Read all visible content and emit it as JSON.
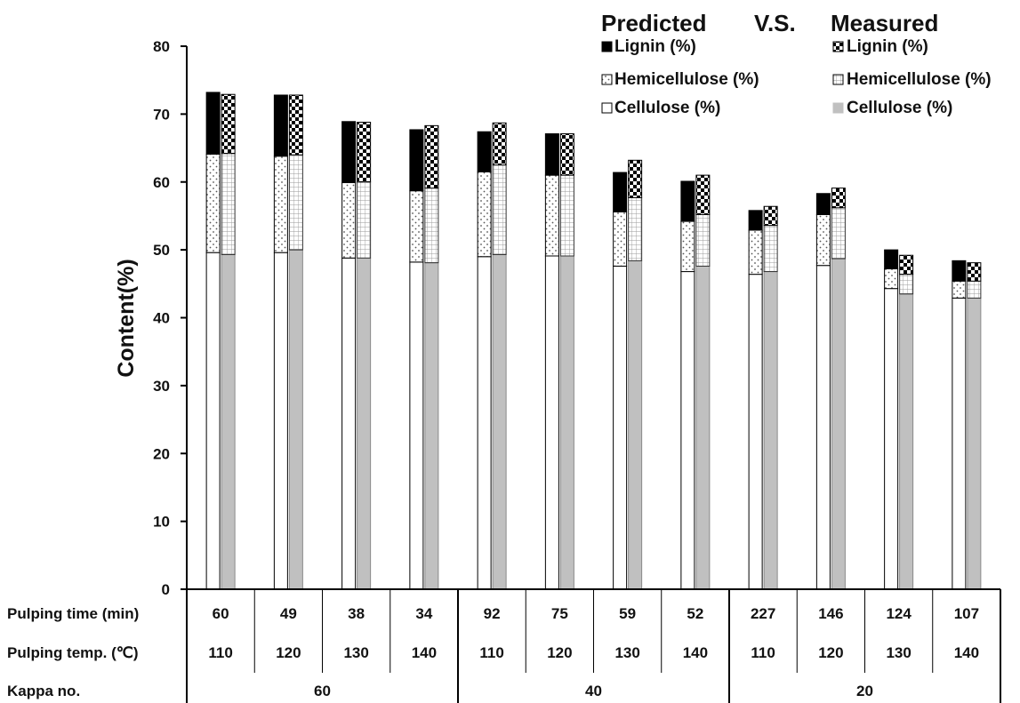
{
  "chart_data": {
    "type": "bar",
    "stacked": true,
    "ylabel": "Content(%)",
    "ylim": [
      0,
      80
    ],
    "yticks": [
      0,
      10,
      20,
      30,
      40,
      50,
      60,
      70,
      80
    ],
    "groups": [
      {
        "time": "60",
        "temp": "110",
        "predicted": {
          "cellulose": 49.6,
          "hemicellulose": 14.5,
          "lignin": 9.1
        },
        "measured": {
          "cellulose": 49.3,
          "hemicellulose": 14.9,
          "lignin": 8.7
        }
      },
      {
        "time": "49",
        "temp": "120",
        "predicted": {
          "cellulose": 49.6,
          "hemicellulose": 14.2,
          "lignin": 9.0
        },
        "measured": {
          "cellulose": 50.0,
          "hemicellulose": 14.0,
          "lignin": 8.8
        }
      },
      {
        "time": "38",
        "temp": "130",
        "predicted": {
          "cellulose": 48.8,
          "hemicellulose": 11.1,
          "lignin": 9.0
        },
        "measured": {
          "cellulose": 48.8,
          "hemicellulose": 11.2,
          "lignin": 8.8
        }
      },
      {
        "time": "34",
        "temp": "140",
        "predicted": {
          "cellulose": 48.2,
          "hemicellulose": 10.5,
          "lignin": 9.0
        },
        "measured": {
          "cellulose": 48.1,
          "hemicellulose": 11.0,
          "lignin": 9.2
        }
      },
      {
        "time": "92",
        "temp": "110",
        "predicted": {
          "cellulose": 49.0,
          "hemicellulose": 12.5,
          "lignin": 5.9
        },
        "measured": {
          "cellulose": 49.3,
          "hemicellulose": 13.2,
          "lignin": 6.2
        }
      },
      {
        "time": "75",
        "temp": "120",
        "predicted": {
          "cellulose": 49.1,
          "hemicellulose": 11.9,
          "lignin": 6.1
        },
        "measured": {
          "cellulose": 49.1,
          "hemicellulose": 11.9,
          "lignin": 6.1
        }
      },
      {
        "time": "59",
        "temp": "130",
        "predicted": {
          "cellulose": 47.6,
          "hemicellulose": 8.0,
          "lignin": 5.8
        },
        "measured": {
          "cellulose": 48.4,
          "hemicellulose": 9.3,
          "lignin": 5.5
        }
      },
      {
        "time": "52",
        "temp": "140",
        "predicted": {
          "cellulose": 46.8,
          "hemicellulose": 7.4,
          "lignin": 5.9
        },
        "measured": {
          "cellulose": 47.6,
          "hemicellulose": 7.6,
          "lignin": 5.8
        }
      },
      {
        "time": "227",
        "temp": "110",
        "predicted": {
          "cellulose": 46.4,
          "hemicellulose": 6.5,
          "lignin": 2.9
        },
        "measured": {
          "cellulose": 46.8,
          "hemicellulose": 6.8,
          "lignin": 2.8
        }
      },
      {
        "time": "146",
        "temp": "120",
        "predicted": {
          "cellulose": 47.7,
          "hemicellulose": 7.5,
          "lignin": 3.1
        },
        "measured": {
          "cellulose": 48.7,
          "hemicellulose": 7.5,
          "lignin": 2.9
        }
      },
      {
        "time": "124",
        "temp": "130",
        "predicted": {
          "cellulose": 44.3,
          "hemicellulose": 2.9,
          "lignin": 2.8
        },
        "measured": {
          "cellulose": 43.5,
          "hemicellulose": 2.9,
          "lignin": 2.8
        }
      },
      {
        "time": "107",
        "temp": "140",
        "predicted": {
          "cellulose": 42.9,
          "hemicellulose": 2.5,
          "lignin": 3.0
        },
        "measured": {
          "cellulose": 42.9,
          "hemicellulose": 2.5,
          "lignin": 2.7
        }
      }
    ],
    "kappa": [
      {
        "label": "60",
        "span": 4
      },
      {
        "label": "40",
        "span": 4
      },
      {
        "label": "20",
        "span": 4
      }
    ],
    "table_rows": {
      "time": "Pulping time (min)",
      "temp": "Pulping temp. (℃)",
      "kappa": "Kappa no."
    },
    "legend": {
      "placement": "top-right",
      "predicted_header": "Predicted",
      "vs": "V.S.",
      "measured_header": "Measured",
      "predicted": [
        {
          "name": "Lignin (%)",
          "pattern": "solid-black"
        },
        {
          "name": "Hemicellulose (%)",
          "pattern": "dots"
        },
        {
          "name": "Cellulose (%)",
          "pattern": "white"
        }
      ],
      "measured": [
        {
          "name": "Lignin (%)",
          "pattern": "checker"
        },
        {
          "name": "Hemicellulose (%)",
          "pattern": "grid"
        },
        {
          "name": "Cellulose (%)",
          "pattern": "gray"
        }
      ]
    },
    "colors": {
      "lignin_predicted": "#000000",
      "cellulose_measured": "#c0c0c0",
      "axis": "#000000"
    }
  }
}
